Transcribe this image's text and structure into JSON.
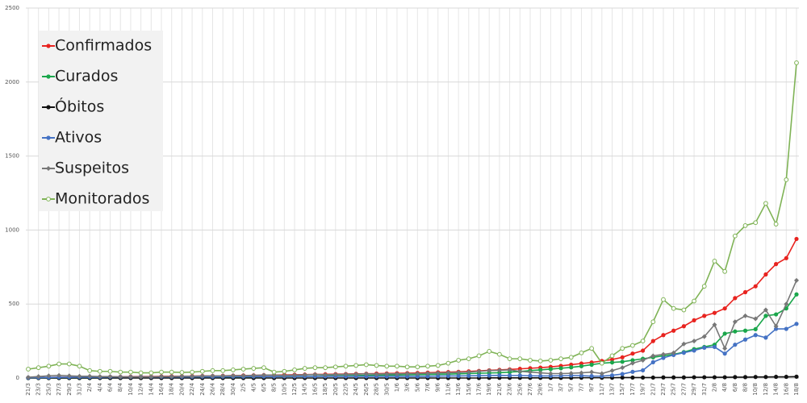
{
  "chart_data": {
    "type": "line",
    "categories": [
      "21/3",
      "23/3",
      "25/3",
      "27/3",
      "29/3",
      "31/3",
      "2/4",
      "4/4",
      "6/4",
      "8/4",
      "10/4",
      "12/4",
      "14/4",
      "16/4",
      "18/4",
      "20/4",
      "22/4",
      "24/4",
      "26/4",
      "28/4",
      "30/4",
      "2/5",
      "4/5",
      "6/5",
      "8/5",
      "10/5",
      "12/5",
      "14/5",
      "16/5",
      "18/5",
      "20/5",
      "22/5",
      "24/5",
      "26/5",
      "28/5",
      "30/5",
      "1/6",
      "3/6",
      "5/6",
      "7/6",
      "9/6",
      "11/6",
      "13/6",
      "15/6",
      "17/6",
      "19/6",
      "21/6",
      "23/6",
      "25/6",
      "27/6",
      "29/6",
      "1/7",
      "3/7",
      "5/7",
      "7/7",
      "9/7",
      "11/7",
      "13/7",
      "15/7",
      "17/7",
      "19/7",
      "21/7",
      "23/7",
      "25/7",
      "27/7",
      "29/7",
      "31/7",
      "2/8",
      "4/8",
      "6/8",
      "8/8",
      "10/8",
      "12/8",
      "14/8",
      "16/8",
      "18/8"
    ],
    "series": [
      {
        "name": "Confirmados",
        "color": "#e8231f",
        "marker": "circle",
        "values": [
          2,
          3,
          4,
          5,
          5,
          6,
          6,
          7,
          8,
          8,
          9,
          10,
          10,
          11,
          12,
          12,
          13,
          14,
          14,
          15,
          16,
          17,
          18,
          19,
          20,
          21,
          22,
          23,
          24,
          25,
          26,
          27,
          28,
          29,
          30,
          31,
          32,
          33,
          34,
          36,
          38,
          40,
          42,
          45,
          48,
          52,
          55,
          58,
          62,
          66,
          70,
          75,
          82,
          90,
          98,
          105,
          115,
          125,
          140,
          165,
          185,
          250,
          290,
          320,
          350,
          390,
          420,
          440,
          470,
          540,
          580,
          620,
          700,
          770,
          810,
          940
        ]
      },
      {
        "name": "Curados",
        "color": "#1aa64b",
        "marker": "circle",
        "values": [
          0,
          0,
          0,
          0,
          0,
          0,
          0,
          1,
          1,
          1,
          2,
          2,
          3,
          3,
          4,
          4,
          5,
          5,
          6,
          6,
          7,
          8,
          8,
          9,
          10,
          10,
          11,
          12,
          13,
          14,
          15,
          16,
          17,
          18,
          19,
          20,
          21,
          22,
          23,
          24,
          25,
          26,
          28,
          30,
          32,
          34,
          36,
          40,
          44,
          50,
          55,
          60,
          66,
          72,
          80,
          90,
          100,
          105,
          110,
          120,
          130,
          140,
          150,
          160,
          175,
          195,
          210,
          225,
          300,
          315,
          320,
          330,
          420,
          430,
          470,
          565
        ]
      },
      {
        "name": "Óbitos",
        "color": "#111111",
        "marker": "circle",
        "values": [
          0,
          0,
          0,
          0,
          0,
          0,
          0,
          0,
          0,
          0,
          0,
          0,
          0,
          0,
          0,
          0,
          0,
          0,
          0,
          0,
          0,
          0,
          0,
          0,
          0,
          0,
          0,
          0,
          0,
          0,
          0,
          0,
          0,
          0,
          0,
          0,
          0,
          0,
          0,
          0,
          0,
          0,
          0,
          0,
          0,
          1,
          1,
          1,
          1,
          1,
          1,
          1,
          1,
          1,
          2,
          2,
          2,
          2,
          3,
          3,
          3,
          3,
          4,
          4,
          4,
          5,
          5,
          5,
          5,
          6,
          6,
          7,
          7,
          8,
          8,
          9
        ]
      },
      {
        "name": "Ativos",
        "color": "#4472c4",
        "marker": "circle",
        "values": [
          2,
          3,
          4,
          5,
          5,
          6,
          6,
          6,
          7,
          7,
          7,
          8,
          7,
          8,
          8,
          8,
          8,
          9,
          8,
          9,
          9,
          9,
          10,
          10,
          10,
          11,
          11,
          11,
          11,
          11,
          11,
          11,
          11,
          11,
          11,
          11,
          11,
          11,
          11,
          12,
          13,
          14,
          14,
          15,
          16,
          17,
          18,
          17,
          17,
          15,
          14,
          14,
          15,
          17,
          16,
          13,
          13,
          18,
          27,
          42,
          52,
          107,
          136,
          156,
          171,
          186,
          205,
          210,
          165,
          225,
          260,
          290,
          273,
          332,
          332,
          366
        ]
      },
      {
        "name": "Suspeitos",
        "color": "#777777",
        "marker": "diamond",
        "values": [
          5,
          10,
          15,
          18,
          15,
          12,
          12,
          10,
          10,
          8,
          8,
          7,
          8,
          10,
          10,
          12,
          12,
          14,
          15,
          15,
          16,
          16,
          18,
          20,
          20,
          18,
          20,
          22,
          24,
          22,
          24,
          25,
          26,
          28,
          26,
          28,
          28,
          30,
          30,
          32,
          34,
          36,
          38,
          40,
          45,
          50,
          52,
          55,
          45,
          40,
          35,
          30,
          30,
          32,
          35,
          40,
          30,
          50,
          70,
          100,
          120,
          150,
          160,
          170,
          230,
          250,
          280,
          360,
          200,
          380,
          420,
          400,
          460,
          350,
          500,
          660
        ]
      },
      {
        "name": "Monitorados",
        "color": "#7fb356",
        "marker": "hollow",
        "values": [
          60,
          70,
          80,
          95,
          95,
          80,
          50,
          45,
          45,
          40,
          40,
          35,
          35,
          40,
          40,
          38,
          40,
          45,
          50,
          50,
          55,
          60,
          65,
          70,
          40,
          45,
          55,
          65,
          70,
          70,
          75,
          80,
          85,
          90,
          85,
          80,
          80,
          75,
          75,
          80,
          85,
          100,
          120,
          130,
          150,
          180,
          160,
          130,
          130,
          120,
          115,
          120,
          130,
          140,
          170,
          200,
          100,
          150,
          200,
          220,
          250,
          380,
          530,
          470,
          460,
          520,
          620,
          790,
          720,
          960,
          1030,
          1050,
          1180,
          1040,
          1340,
          2130
        ]
      }
    ],
    "ylim": [
      0,
      2500
    ],
    "yticks": [
      0,
      500,
      1000,
      1500,
      2000,
      2500
    ],
    "grid": true,
    "legend": "upper left"
  }
}
